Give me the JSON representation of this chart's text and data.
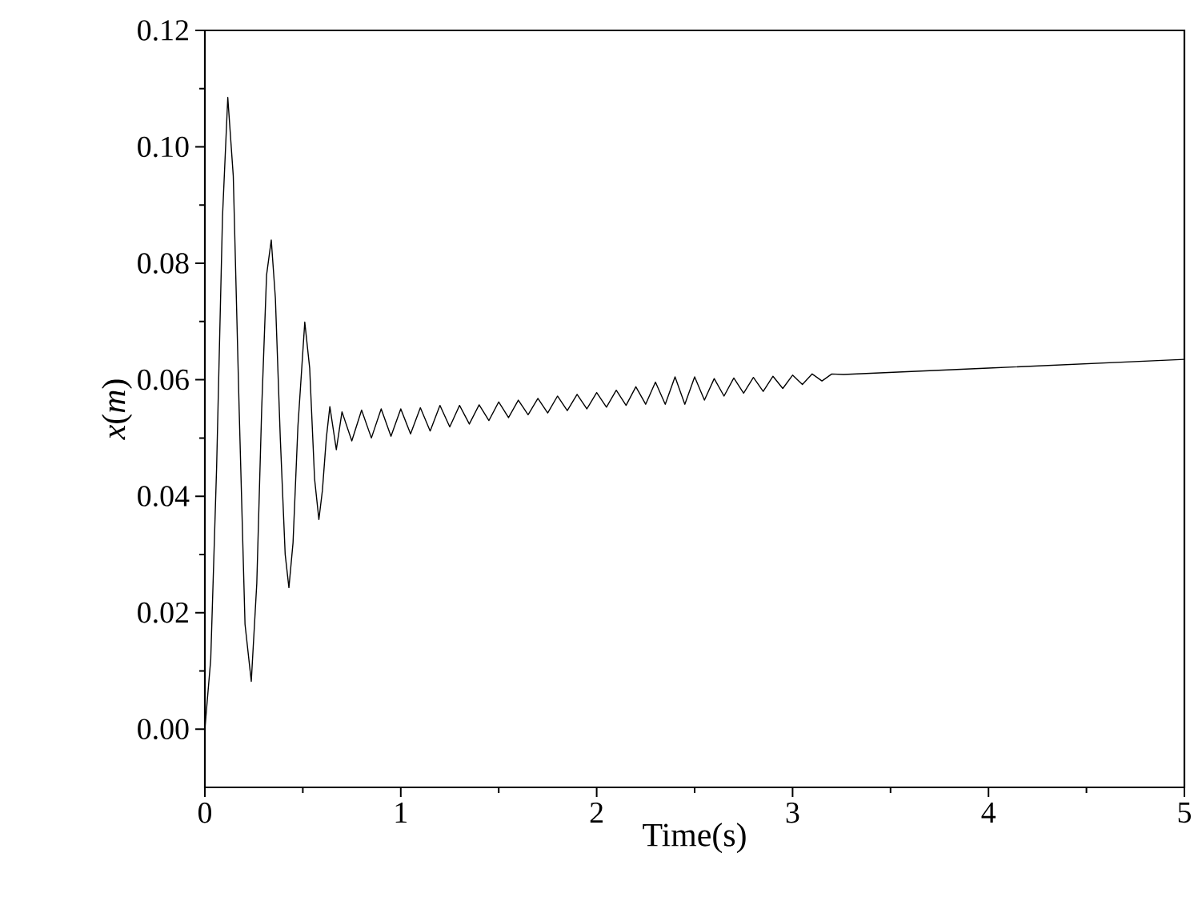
{
  "chart_data": {
    "type": "line",
    "xlabel": "Time(s)",
    "ylabel": "*x*(*m*)",
    "xlim": [
      0,
      5
    ],
    "ylim": [
      -0.01,
      0.12
    ],
    "xticks": [
      0,
      {
        "value": 0.5,
        "label": null
      },
      1,
      {
        "value": 1.5,
        "label": null
      },
      2,
      {
        "value": 2.5,
        "label": null
      },
      3,
      {
        "value": 3.5,
        "label": null
      },
      4,
      {
        "value": 4.5,
        "label": null
      },
      5
    ],
    "yticks": [
      {
        "value": 0,
        "label": "0.00"
      },
      {
        "value": 0.01,
        "label": null
      },
      {
        "value": 0.02,
        "label": "0.02"
      },
      {
        "value": 0.03,
        "label": null
      },
      {
        "value": 0.04,
        "label": "0.04"
      },
      {
        "value": 0.05,
        "label": null
      },
      {
        "value": 0.06,
        "label": "0.06"
      },
      {
        "value": 0.07,
        "label": null
      },
      {
        "value": 0.08,
        "label": "0.08"
      },
      {
        "value": 0.09,
        "label": null
      },
      {
        "value": 0.1,
        "label": "0.10"
      },
      {
        "value": 0.11,
        "label": null
      },
      {
        "value": 0.12,
        "label": "0.12"
      }
    ],
    "marker": "none",
    "line_style": "solid",
    "series": [
      {
        "color": "#000000",
        "x": [
          0,
          0.03,
          0.06,
          0.09,
          0.117,
          0.145,
          0.175,
          0.205,
          0.237,
          0.265,
          0.29,
          0.315,
          0.339,
          0.36,
          0.385,
          0.41,
          0.429,
          0.45,
          0.475,
          0.51,
          0.535,
          0.56,
          0.582,
          0.6,
          0.62,
          0.638,
          0.671,
          0.7,
          0.75,
          0.8,
          0.85,
          0.9,
          0.95,
          1.0,
          1.05,
          1.1,
          1.15,
          1.2,
          1.25,
          1.3,
          1.35,
          1.4,
          1.45,
          1.5,
          1.55,
          1.6,
          1.65,
          1.7,
          1.75,
          1.8,
          1.85,
          1.9,
          1.95,
          2.0,
          2.05,
          2.1,
          2.15,
          2.2,
          2.25,
          2.3,
          2.35,
          2.4,
          2.45,
          2.5,
          2.55,
          2.6,
          2.65,
          2.7,
          2.75,
          2.8,
          2.85,
          2.9,
          2.95,
          3.0,
          3.05,
          3.1,
          3.15,
          3.2,
          3.26,
          4.0,
          5.0
        ],
        "values": [
          0.0,
          0.012,
          0.045,
          0.088,
          0.1085,
          0.095,
          0.055,
          0.018,
          0.0082,
          0.025,
          0.055,
          0.078,
          0.084,
          0.074,
          0.05,
          0.03,
          0.0243,
          0.032,
          0.052,
          0.0699,
          0.062,
          0.043,
          0.036,
          0.041,
          0.05,
          0.0554,
          0.048,
          0.0545,
          0.0495,
          0.0548,
          0.05,
          0.055,
          0.0503,
          0.055,
          0.0507,
          0.0552,
          0.0512,
          0.0556,
          0.0519,
          0.0556,
          0.0524,
          0.0557,
          0.053,
          0.0562,
          0.0535,
          0.0565,
          0.054,
          0.0568,
          0.0543,
          0.0572,
          0.0547,
          0.0575,
          0.055,
          0.0578,
          0.0553,
          0.0582,
          0.0556,
          0.0588,
          0.0558,
          0.0596,
          0.0558,
          0.0605,
          0.0558,
          0.0605,
          0.0565,
          0.0602,
          0.0572,
          0.0603,
          0.0577,
          0.0604,
          0.058,
          0.0606,
          0.0585,
          0.0608,
          0.0592,
          0.061,
          0.0598,
          0.061,
          0.0609,
          0.062,
          0.0635
        ]
      }
    ]
  }
}
